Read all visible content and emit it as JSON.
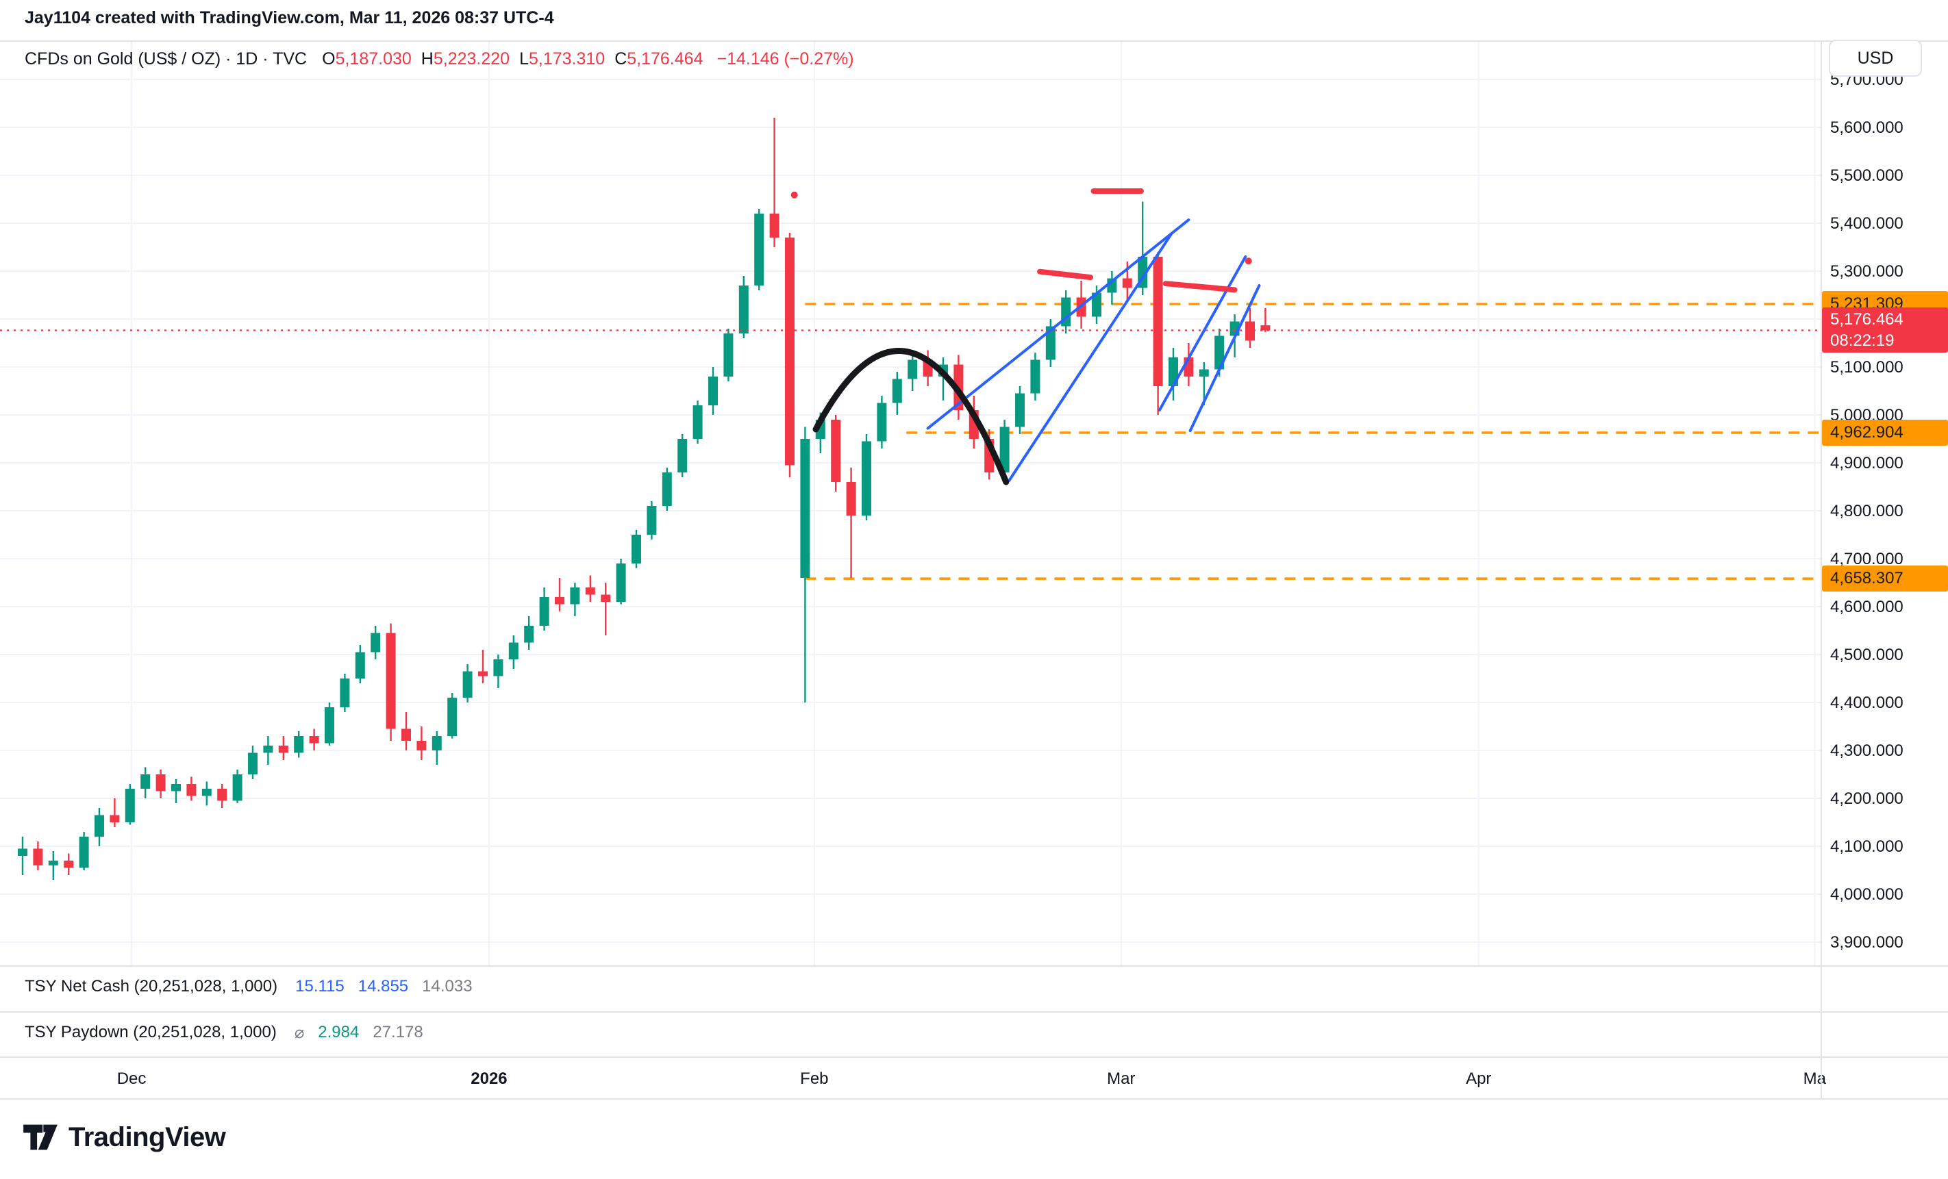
{
  "attribution": "Jay1104 created with TradingView.com, Mar 11, 2026 08:37 UTC-4",
  "symbol": {
    "title": "CFDs on Gold (US$ / OZ) · 1D · TVC",
    "ohlc": {
      "o_label": "O",
      "o": "5,187.030",
      "h_label": "H",
      "h": "5,223.220",
      "l_label": "L",
      "l": "5,173.310",
      "c_label": "C",
      "c": "5,176.464",
      "change": "−14.146 (−0.27%)",
      "value_color": "#f23645"
    }
  },
  "price_scale": {
    "currency": "USD",
    "current": {
      "price": "5,176.464",
      "time": "08:22:19",
      "value": 5176.464
    },
    "levels": [
      {
        "label": "5,231.309",
        "value": 5231.309,
        "start_index": 51.0
      },
      {
        "label": "4,962.904",
        "value": 4962.904,
        "start_index": 57.6
      },
      {
        "label": "4,658.307",
        "value": 4658.307,
        "start_index": 51.0
      }
    ]
  },
  "indicators": [
    {
      "name": "TSY Net Cash (20,251,028, 1,000)",
      "values": [
        {
          "text": "15.115",
          "color": "#2962ff"
        },
        {
          "text": "14.855",
          "color": "#2962ff"
        },
        {
          "text": "14.033",
          "color": "#787b86"
        }
      ]
    },
    {
      "name": "TSY Paydown (20,251,028, 1,000)",
      "values": [
        {
          "text": "⌀",
          "color": "#787b86"
        },
        {
          "text": "2.984",
          "color": "#089981"
        },
        {
          "text": "27.178",
          "color": "#787b86"
        }
      ]
    }
  ],
  "time_axis": {
    "labels": [
      {
        "text": "Dec",
        "index": 7.1,
        "bold": false
      },
      {
        "text": "2026",
        "index": 30.4,
        "bold": true
      },
      {
        "text": "Feb",
        "index": 51.6,
        "bold": false
      },
      {
        "text": "Mar",
        "index": 71.6,
        "bold": false
      },
      {
        "text": "Apr",
        "index": 94.9,
        "bold": false
      },
      {
        "text": "Ma",
        "index": 116.8,
        "bold": false
      }
    ]
  },
  "footer": {
    "brand": "TradingView"
  },
  "chart_data": {
    "type": "candlestick",
    "title": "CFDs on Gold (US$ / OZ) Daily",
    "ylim": [
      3850,
      5780
    ],
    "y_ticks": [
      5700,
      5600,
      5500,
      5400,
      5300,
      5200,
      5100,
      5000,
      4900,
      4800,
      4700,
      4600,
      4500,
      4400,
      4300,
      4200,
      4100,
      4000,
      3900
    ],
    "colors": {
      "up": "#089981",
      "down": "#f23645",
      "grid": "#f0f3fa",
      "border": "#e0e3eb",
      "level": "#ff9800",
      "current": "#f23645",
      "drawing_blue": "#2962ff",
      "drawing_red": "#f23645",
      "drawing_black": "#16181c",
      "axis_text": "#131722"
    },
    "candles": [
      [
        4080,
        4120,
        4040,
        4095
      ],
      [
        4095,
        4110,
        4050,
        4060
      ],
      [
        4060,
        4090,
        4030,
        4070
      ],
      [
        4070,
        4085,
        4040,
        4055
      ],
      [
        4055,
        4130,
        4050,
        4120
      ],
      [
        4120,
        4180,
        4100,
        4165
      ],
      [
        4165,
        4200,
        4140,
        4150
      ],
      [
        4150,
        4230,
        4145,
        4220
      ],
      [
        4220,
        4265,
        4200,
        4250
      ],
      [
        4250,
        4260,
        4200,
        4215
      ],
      [
        4215,
        4240,
        4190,
        4230
      ],
      [
        4230,
        4245,
        4195,
        4205
      ],
      [
        4205,
        4235,
        4185,
        4220
      ],
      [
        4220,
        4230,
        4180,
        4195
      ],
      [
        4195,
        4260,
        4190,
        4250
      ],
      [
        4250,
        4310,
        4240,
        4295
      ],
      [
        4295,
        4330,
        4270,
        4310
      ],
      [
        4310,
        4330,
        4280,
        4295
      ],
      [
        4295,
        4340,
        4285,
        4330
      ],
      [
        4330,
        4345,
        4300,
        4315
      ],
      [
        4315,
        4400,
        4310,
        4390
      ],
      [
        4390,
        4460,
        4380,
        4450
      ],
      [
        4450,
        4520,
        4440,
        4505
      ],
      [
        4505,
        4560,
        4490,
        4545
      ],
      [
        4545,
        4565,
        4320,
        4345
      ],
      [
        4345,
        4380,
        4300,
        4320
      ],
      [
        4320,
        4350,
        4280,
        4300
      ],
      [
        4300,
        4340,
        4270,
        4330
      ],
      [
        4330,
        4420,
        4325,
        4410
      ],
      [
        4410,
        4480,
        4400,
        4465
      ],
      [
        4465,
        4510,
        4440,
        4455
      ],
      [
        4455,
        4500,
        4430,
        4490
      ],
      [
        4490,
        4540,
        4470,
        4525
      ],
      [
        4525,
        4580,
        4510,
        4560
      ],
      [
        4560,
        4640,
        4550,
        4620
      ],
      [
        4620,
        4660,
        4590,
        4605
      ],
      [
        4605,
        4650,
        4580,
        4640
      ],
      [
        4640,
        4665,
        4610,
        4625
      ],
      [
        4625,
        4650,
        4540,
        4610
      ],
      [
        4610,
        4700,
        4605,
        4690
      ],
      [
        4690,
        4760,
        4680,
        4750
      ],
      [
        4750,
        4820,
        4740,
        4810
      ],
      [
        4810,
        4890,
        4800,
        4880
      ],
      [
        4880,
        4960,
        4870,
        4950
      ],
      [
        4950,
        5030,
        4940,
        5020
      ],
      [
        5020,
        5100,
        5000,
        5080
      ],
      [
        5080,
        5180,
        5070,
        5170
      ],
      [
        5170,
        5290,
        5160,
        5270
      ],
      [
        5270,
        5430,
        5260,
        5420
      ],
      [
        5420,
        5620,
        5350,
        5370
      ],
      [
        5370,
        5380,
        4870,
        4895
      ],
      [
        4660,
        4975,
        4400,
        4950
      ],
      [
        4950,
        5005,
        4920,
        4990
      ],
      [
        4990,
        5000,
        4840,
        4860
      ],
      [
        4860,
        4890,
        4660,
        4790
      ],
      [
        4790,
        4960,
        4780,
        4945
      ],
      [
        4945,
        5040,
        4930,
        5025
      ],
      [
        5025,
        5090,
        5000,
        5075
      ],
      [
        5075,
        5130,
        5050,
        5115
      ],
      [
        5115,
        5135,
        5060,
        5080
      ],
      [
        5080,
        5120,
        5030,
        5105
      ],
      [
        5105,
        5125,
        4990,
        5010
      ],
      [
        5010,
        5040,
        4930,
        4950
      ],
      [
        4950,
        4970,
        4865,
        4880
      ],
      [
        4880,
        4990,
        4870,
        4975
      ],
      [
        4975,
        5060,
        4960,
        5045
      ],
      [
        5045,
        5130,
        5030,
        5115
      ],
      [
        5115,
        5200,
        5100,
        5185
      ],
      [
        5185,
        5260,
        5170,
        5245
      ],
      [
        5245,
        5280,
        5180,
        5205
      ],
      [
        5205,
        5270,
        5190,
        5255
      ],
      [
        5255,
        5300,
        5230,
        5285
      ],
      [
        5285,
        5320,
        5240,
        5265
      ],
      [
        5265,
        5445,
        5250,
        5330
      ],
      [
        5330,
        5340,
        5000,
        5060
      ],
      [
        5060,
        5140,
        5030,
        5120
      ],
      [
        5120,
        5150,
        5060,
        5080
      ],
      [
        5080,
        5110,
        5020,
        5095
      ],
      [
        5095,
        5180,
        5080,
        5165
      ],
      [
        5165,
        5210,
        5120,
        5195
      ],
      [
        5195,
        5223,
        5140,
        5155
      ],
      [
        5187,
        5223,
        5173,
        5176.464
      ]
    ],
    "drawings": {
      "blue_lines": [
        {
          "i1": 59.0,
          "p1": 4972,
          "i2": 76.0,
          "p2": 5407
        },
        {
          "i1": 64.3,
          "p1": 4863,
          "i2": 74.9,
          "p2": 5379
        },
        {
          "i1": 74.1,
          "p1": 5010,
          "i2": 79.7,
          "p2": 5330
        },
        {
          "i1": 76.1,
          "p1": 4967,
          "i2": 80.6,
          "p2": 5270
        }
      ],
      "red_marks": [
        {
          "i1": 69.8,
          "p1": 5467,
          "i2": 72.9,
          "p2": 5467
        },
        {
          "i1": 66.3,
          "p1": 5299,
          "i2": 69.6,
          "p2": 5287
        },
        {
          "i1": 74.5,
          "p1": 5274,
          "i2": 79.0,
          "p2": 5261
        }
      ],
      "red_dots": [
        {
          "i": 79.9,
          "p": 5321
        },
        {
          "i": 50.3,
          "p": 5459
        }
      ],
      "black_arc": {
        "points": [
          [
            51.7,
            4970
          ],
          [
            57.9,
            5130
          ],
          [
            64.1,
            4860
          ]
        ]
      }
    }
  }
}
